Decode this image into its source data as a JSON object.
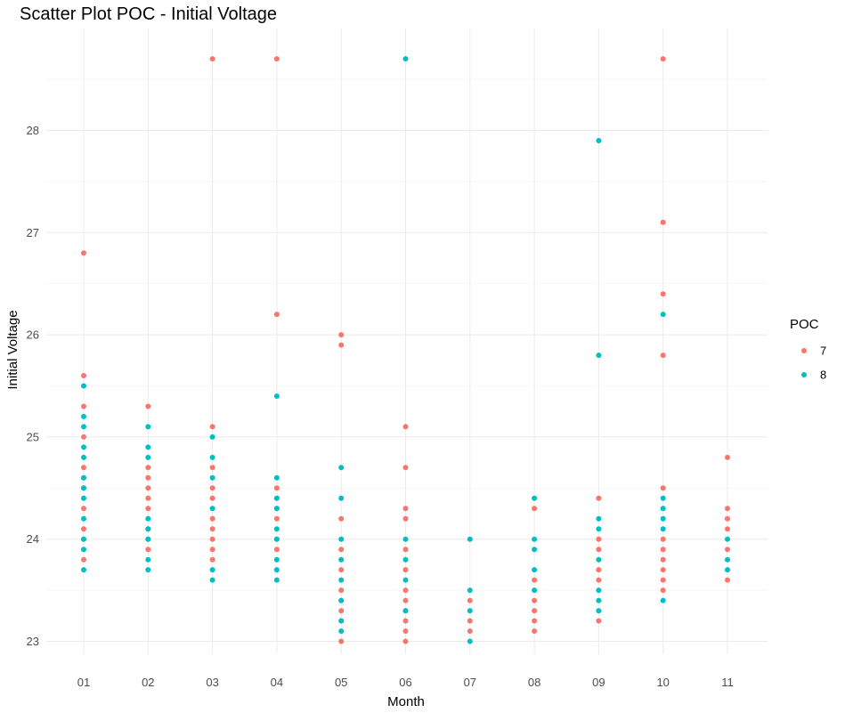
{
  "chart_data": {
    "type": "scatter",
    "title": "Scatter Plot POC - Initial Voltage",
    "xlabel": "Month",
    "ylabel": "Initial Voltage",
    "categories": [
      "01",
      "02",
      "03",
      "04",
      "05",
      "06",
      "07",
      "08",
      "09",
      "10",
      "11"
    ],
    "ylim": [
      22.9,
      28.85
    ],
    "yticks": [
      23,
      24,
      25,
      26,
      27,
      28
    ],
    "grid": true,
    "legend": {
      "title": "POC",
      "position": "right"
    },
    "series": [
      {
        "name": "7",
        "color": "#F8766D",
        "points": [
          [
            "01",
            26.8
          ],
          [
            "01",
            25.6
          ],
          [
            "01",
            25.3
          ],
          [
            "01",
            25.0
          ],
          [
            "01",
            24.7
          ],
          [
            "01",
            24.6
          ],
          [
            "01",
            24.5
          ],
          [
            "01",
            24.3
          ],
          [
            "01",
            24.1
          ],
          [
            "01",
            24.0
          ],
          [
            "01",
            23.8
          ],
          [
            "02",
            25.3
          ],
          [
            "02",
            24.7
          ],
          [
            "02",
            24.6
          ],
          [
            "02",
            24.5
          ],
          [
            "02",
            24.4
          ],
          [
            "02",
            24.3
          ],
          [
            "02",
            24.1
          ],
          [
            "02",
            24.0
          ],
          [
            "02",
            23.9
          ],
          [
            "03",
            28.7
          ],
          [
            "03",
            25.1
          ],
          [
            "03",
            24.7
          ],
          [
            "03",
            24.5
          ],
          [
            "03",
            24.4
          ],
          [
            "03",
            24.2
          ],
          [
            "03",
            24.1
          ],
          [
            "03",
            24.0
          ],
          [
            "03",
            23.9
          ],
          [
            "03",
            23.8
          ],
          [
            "04",
            28.7
          ],
          [
            "04",
            26.2
          ],
          [
            "04",
            24.5
          ],
          [
            "04",
            24.4
          ],
          [
            "04",
            24.3
          ],
          [
            "04",
            24.2
          ],
          [
            "04",
            24.0
          ],
          [
            "04",
            23.9
          ],
          [
            "05",
            26.0
          ],
          [
            "05",
            25.9
          ],
          [
            "05",
            24.2
          ],
          [
            "05",
            23.9
          ],
          [
            "05",
            23.7
          ],
          [
            "05",
            23.5
          ],
          [
            "05",
            23.4
          ],
          [
            "05",
            23.3
          ],
          [
            "05",
            23.2
          ],
          [
            "05",
            23.0
          ],
          [
            "06",
            25.1
          ],
          [
            "06",
            24.7
          ],
          [
            "06",
            24.3
          ],
          [
            "06",
            24.2
          ],
          [
            "06",
            23.9
          ],
          [
            "06",
            23.7
          ],
          [
            "06",
            23.5
          ],
          [
            "06",
            23.4
          ],
          [
            "06",
            23.3
          ],
          [
            "06",
            23.2
          ],
          [
            "06",
            23.1
          ],
          [
            "06",
            23.0
          ],
          [
            "07",
            23.4
          ],
          [
            "07",
            23.2
          ],
          [
            "07",
            23.1
          ],
          [
            "08",
            24.3
          ],
          [
            "08",
            23.6
          ],
          [
            "08",
            23.4
          ],
          [
            "08",
            23.3
          ],
          [
            "08",
            23.2
          ],
          [
            "08",
            23.1
          ],
          [
            "09",
            24.4
          ],
          [
            "09",
            24.0
          ],
          [
            "09",
            23.9
          ],
          [
            "09",
            23.7
          ],
          [
            "09",
            23.6
          ],
          [
            "09",
            23.2
          ],
          [
            "10",
            28.7
          ],
          [
            "10",
            27.1
          ],
          [
            "10",
            26.4
          ],
          [
            "10",
            25.8
          ],
          [
            "10",
            24.5
          ],
          [
            "10",
            24.0
          ],
          [
            "10",
            23.9
          ],
          [
            "10",
            23.8
          ],
          [
            "10",
            23.7
          ],
          [
            "10",
            23.6
          ],
          [
            "10",
            23.5
          ],
          [
            "11",
            24.8
          ],
          [
            "11",
            24.3
          ],
          [
            "11",
            24.2
          ],
          [
            "11",
            24.1
          ],
          [
            "11",
            23.9
          ],
          [
            "11",
            23.6
          ]
        ]
      },
      {
        "name": "8",
        "color": "#00BFC4",
        "points": [
          [
            "01",
            25.5
          ],
          [
            "01",
            25.2
          ],
          [
            "01",
            25.1
          ],
          [
            "01",
            24.9
          ],
          [
            "01",
            24.8
          ],
          [
            "01",
            24.6
          ],
          [
            "01",
            24.5
          ],
          [
            "01",
            24.4
          ],
          [
            "01",
            24.2
          ],
          [
            "01",
            24.0
          ],
          [
            "01",
            23.9
          ],
          [
            "01",
            23.7
          ],
          [
            "02",
            25.1
          ],
          [
            "02",
            24.9
          ],
          [
            "02",
            24.8
          ],
          [
            "02",
            24.2
          ],
          [
            "02",
            24.1
          ],
          [
            "02",
            24.0
          ],
          [
            "02",
            23.8
          ],
          [
            "02",
            23.7
          ],
          [
            "03",
            25.0
          ],
          [
            "03",
            24.8
          ],
          [
            "03",
            24.6
          ],
          [
            "03",
            24.3
          ],
          [
            "03",
            23.7
          ],
          [
            "03",
            23.6
          ],
          [
            "04",
            25.4
          ],
          [
            "04",
            24.6
          ],
          [
            "04",
            24.4
          ],
          [
            "04",
            24.3
          ],
          [
            "04",
            24.1
          ],
          [
            "04",
            24.0
          ],
          [
            "04",
            23.8
          ],
          [
            "04",
            23.7
          ],
          [
            "04",
            23.6
          ],
          [
            "05",
            24.7
          ],
          [
            "05",
            24.4
          ],
          [
            "05",
            24.0
          ],
          [
            "05",
            23.8
          ],
          [
            "05",
            23.6
          ],
          [
            "05",
            23.4
          ],
          [
            "05",
            23.2
          ],
          [
            "05",
            23.1
          ],
          [
            "06",
            28.7
          ],
          [
            "06",
            24.0
          ],
          [
            "06",
            23.8
          ],
          [
            "06",
            23.6
          ],
          [
            "06",
            23.3
          ],
          [
            "07",
            24.0
          ],
          [
            "07",
            23.5
          ],
          [
            "07",
            23.3
          ],
          [
            "07",
            23.0
          ],
          [
            "08",
            24.4
          ],
          [
            "08",
            24.0
          ],
          [
            "08",
            23.9
          ],
          [
            "08",
            23.7
          ],
          [
            "08",
            23.5
          ],
          [
            "09",
            27.9
          ],
          [
            "09",
            25.8
          ],
          [
            "09",
            24.2
          ],
          [
            "09",
            24.1
          ],
          [
            "09",
            23.8
          ],
          [
            "09",
            23.5
          ],
          [
            "09",
            23.4
          ],
          [
            "09",
            23.3
          ],
          [
            "10",
            26.2
          ],
          [
            "10",
            24.4
          ],
          [
            "10",
            24.3
          ],
          [
            "10",
            24.2
          ],
          [
            "10",
            24.1
          ],
          [
            "10",
            23.4
          ],
          [
            "11",
            24.0
          ],
          [
            "11",
            23.8
          ],
          [
            "11",
            23.7
          ]
        ]
      }
    ]
  }
}
